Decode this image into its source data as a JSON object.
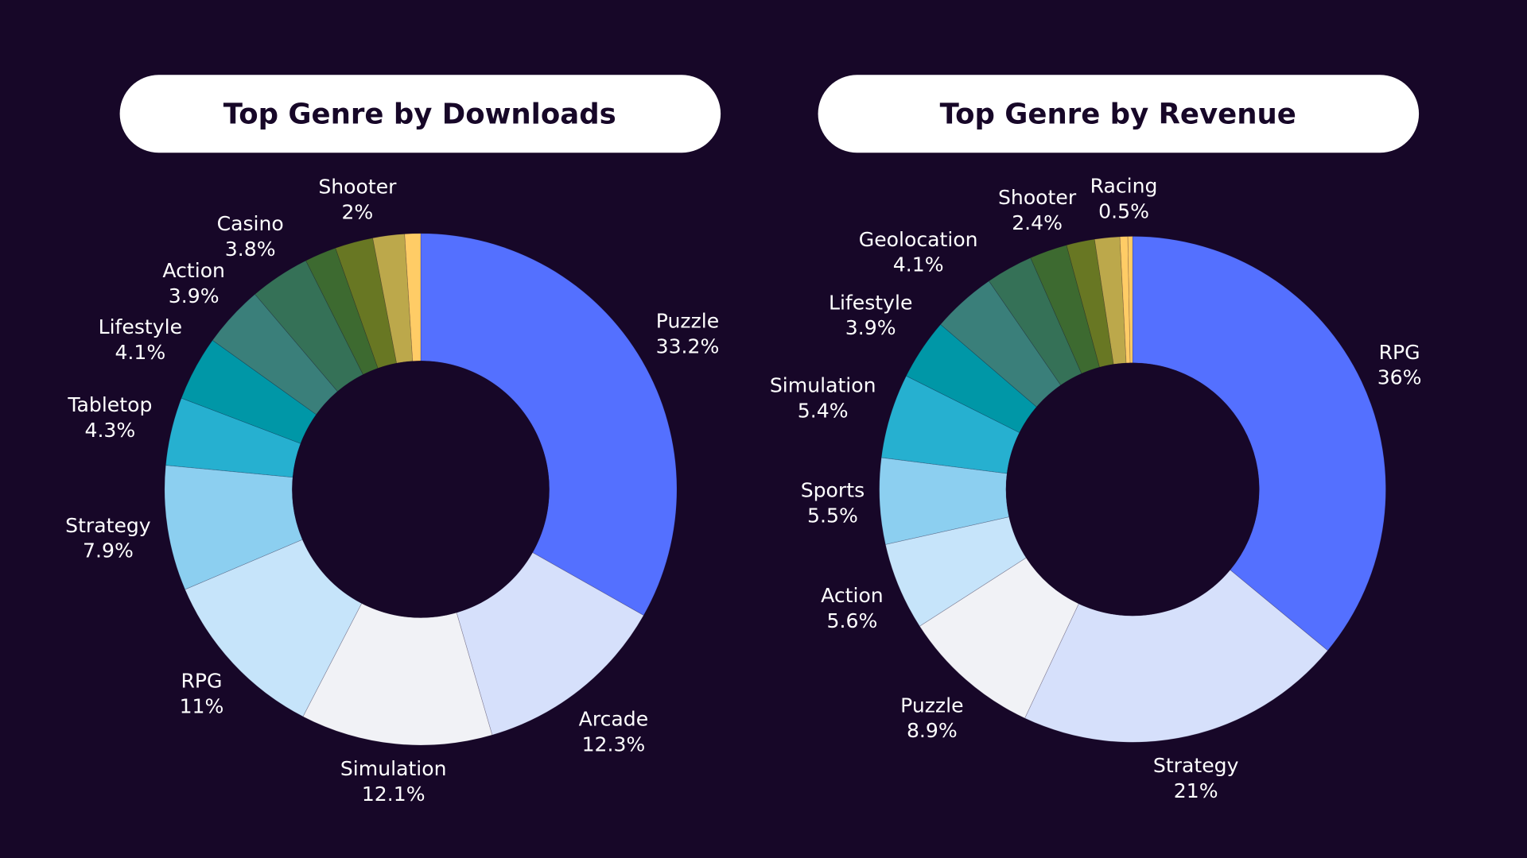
{
  "background": "#170728",
  "chart_data": [
    {
      "type": "pie",
      "donut": true,
      "title": "Top Genre by Downloads",
      "unit": "%",
      "slices": [
        {
          "name": "Puzzle",
          "label": "33.2%",
          "value": 33.2,
          "color": "#5470ff"
        },
        {
          "name": "Arcade",
          "label": "12.3%",
          "value": 12.3,
          "color": "#d6e0fb"
        },
        {
          "name": "Simulation",
          "label": "12.1%",
          "value": 12.1,
          "color": "#f1f2f6"
        },
        {
          "name": "RPG",
          "label": "11%",
          "value": 11,
          "color": "#c6e4fa"
        },
        {
          "name": "Strategy",
          "label": "7.9%",
          "value": 7.9,
          "color": "#8ccff0"
        },
        {
          "name": "Tabletop",
          "label": "4.3%",
          "value": 4.3,
          "color": "#26b0d0"
        },
        {
          "name": "Lifestyle",
          "label": "4.1%",
          "value": 4.1,
          "color": "#0097a7"
        },
        {
          "name": "Action",
          "label": "3.9%",
          "value": 3.9,
          "color": "#3a7f7a"
        },
        {
          "name": "Casino",
          "label": "3.8%",
          "value": 3.8,
          "color": "#357157"
        },
        {
          "name": "Shooter",
          "label": "2%",
          "value": 2,
          "color": "#3d6a30"
        },
        {
          "name": "",
          "label": "",
          "value": 2.4,
          "color": "#687723"
        },
        {
          "name": "",
          "label": "",
          "value": 2.0,
          "color": "#bca84b"
        },
        {
          "name": "",
          "label": "",
          "value": 1.0,
          "color": "#ffcc66"
        }
      ]
    },
    {
      "type": "pie",
      "donut": true,
      "title": "Top Genre by Revenue",
      "unit": "%",
      "slices": [
        {
          "name": "RPG",
          "label": "36%",
          "value": 36,
          "color": "#5470ff"
        },
        {
          "name": "Strategy",
          "label": "21%",
          "value": 21,
          "color": "#d6e0fb"
        },
        {
          "name": "Puzzle",
          "label": "8.9%",
          "value": 8.9,
          "color": "#f1f2f6"
        },
        {
          "name": "Action",
          "label": "5.6%",
          "value": 5.6,
          "color": "#c6e4fa"
        },
        {
          "name": "Sports",
          "label": "5.5%",
          "value": 5.5,
          "color": "#8ccff0"
        },
        {
          "name": "Simulation",
          "label": "5.4%",
          "value": 5.4,
          "color": "#26b0d0"
        },
        {
          "name": "Lifestyle",
          "label": "3.9%",
          "value": 3.9,
          "color": "#0097a7"
        },
        {
          "name": "Geolocation",
          "label": "4.1%",
          "value": 4.1,
          "color": "#3a7f7a"
        },
        {
          "name": "",
          "label": "",
          "value": 3.0,
          "color": "#357157"
        },
        {
          "name": "Shooter",
          "label": "2.4%",
          "value": 2.4,
          "color": "#3d6a30"
        },
        {
          "name": "",
          "label": "",
          "value": 1.8,
          "color": "#687723"
        },
        {
          "name": "",
          "label": "",
          "value": 1.6,
          "color": "#bca84b"
        },
        {
          "name": "Racing",
          "label": "0.5%",
          "value": 0.5,
          "color": "#ffcc66"
        },
        {
          "name": "",
          "label": "",
          "value": 0.3,
          "color": "#ffcc66"
        }
      ]
    }
  ]
}
